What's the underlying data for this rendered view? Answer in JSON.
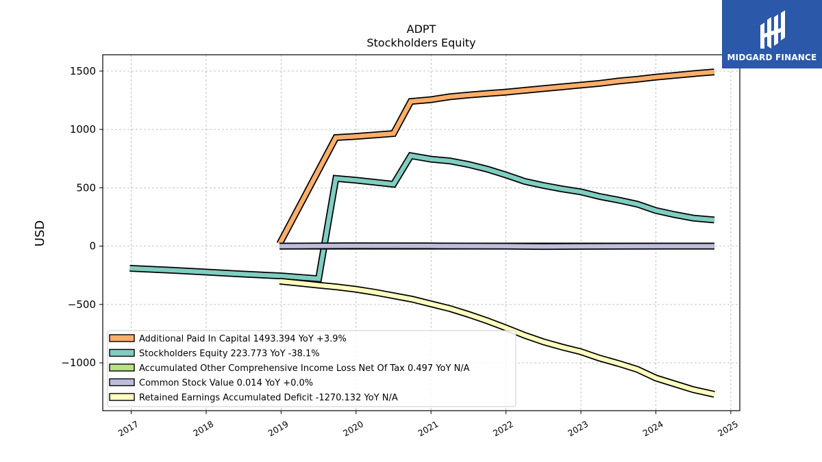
{
  "chart_data": {
    "type": "line",
    "title": "ADPT",
    "subtitle": "Stockholders  Equity",
    "xlabel": "",
    "ylabel": "USD",
    "xlim": [
      2016.62,
      2025.12
    ],
    "ylim": [
      -1410,
      1640
    ],
    "x_ticks": [
      "2017",
      "2018",
      "2019",
      "2020",
      "2021",
      "2022",
      "2023",
      "2024",
      "2025"
    ],
    "y_ticks": [
      1500,
      1000,
      500,
      0,
      -500,
      -1000
    ],
    "y_tick_labels": [
      "1500",
      "1000",
      "500",
      "0",
      "−500",
      "−1000"
    ],
    "grid": true,
    "legend_position": "lower-left",
    "series": [
      {
        "name": "Additional Paid In Capital",
        "legend": "Additional Paid In Capital  1493.394 YoY +3.9%",
        "color": "#fdae6b",
        "points": [
          [
            2018.98,
            20
          ],
          [
            2019.73,
            930
          ],
          [
            2020.0,
            940
          ],
          [
            2020.5,
            965
          ],
          [
            2020.73,
            1240
          ],
          [
            2021.0,
            1255
          ],
          [
            2021.25,
            1280
          ],
          [
            2021.5,
            1295
          ],
          [
            2021.75,
            1308
          ],
          [
            2022.0,
            1320
          ],
          [
            2022.25,
            1335
          ],
          [
            2022.5,
            1350
          ],
          [
            2022.75,
            1365
          ],
          [
            2023.0,
            1380
          ],
          [
            2023.25,
            1395
          ],
          [
            2023.5,
            1415
          ],
          [
            2023.75,
            1430
          ],
          [
            2024.0,
            1448
          ],
          [
            2024.25,
            1463
          ],
          [
            2024.5,
            1478
          ],
          [
            2024.78,
            1493
          ]
        ]
      },
      {
        "name": "Stockholders Equity",
        "legend": "Stockholders Equity  223.773 YoY -38.1%",
        "color": "#80cdc1",
        "points": [
          [
            2016.98,
            -190
          ],
          [
            2017.5,
            -205
          ],
          [
            2018.0,
            -222
          ],
          [
            2018.5,
            -240
          ],
          [
            2019.0,
            -255
          ],
          [
            2019.5,
            -280
          ],
          [
            2019.73,
            580
          ],
          [
            2020.0,
            565
          ],
          [
            2020.5,
            530
          ],
          [
            2020.73,
            775
          ],
          [
            2021.0,
            745
          ],
          [
            2021.25,
            730
          ],
          [
            2021.5,
            700
          ],
          [
            2021.75,
            660
          ],
          [
            2022.0,
            610
          ],
          [
            2022.25,
            555
          ],
          [
            2022.5,
            520
          ],
          [
            2022.75,
            490
          ],
          [
            2023.0,
            465
          ],
          [
            2023.25,
            425
          ],
          [
            2023.5,
            395
          ],
          [
            2023.75,
            360
          ],
          [
            2024.0,
            305
          ],
          [
            2024.25,
            270
          ],
          [
            2024.5,
            240
          ],
          [
            2024.78,
            224
          ]
        ]
      },
      {
        "name": "Accumulated Other Comprehensive Income Loss Net Of Tax",
        "legend": "Accumulated Other Comprehensive Income Loss Net Of Tax  0.497 YoY N/A",
        "color": "#b8e186",
        "points": [
          [
            2018.98,
            0.2
          ],
          [
            2024.78,
            0.5
          ]
        ]
      },
      {
        "name": "Common Stock Value",
        "legend": "Common Stock Value  0.014 YoY +0.0%",
        "color": "#bcbddc",
        "points": [
          [
            2018.98,
            0
          ],
          [
            2020.0,
            3
          ],
          [
            2021.0,
            2
          ],
          [
            2022.0,
            0
          ],
          [
            2022.5,
            -3
          ],
          [
            2023.0,
            -2
          ],
          [
            2024.0,
            0
          ],
          [
            2024.78,
            0
          ]
        ]
      },
      {
        "name": "Retained Earnings Accumulated Deficit",
        "legend": "Retained Earnings Accumulated Deficit  -1270.132 YoY N/A",
        "color": "#ffffbf",
        "points": [
          [
            2018.98,
            -300
          ],
          [
            2019.25,
            -318
          ],
          [
            2019.5,
            -335
          ],
          [
            2019.75,
            -350
          ],
          [
            2020.0,
            -370
          ],
          [
            2020.25,
            -395
          ],
          [
            2020.5,
            -425
          ],
          [
            2020.75,
            -455
          ],
          [
            2021.0,
            -495
          ],
          [
            2021.25,
            -535
          ],
          [
            2021.5,
            -585
          ],
          [
            2021.75,
            -640
          ],
          [
            2022.0,
            -700
          ],
          [
            2022.25,
            -765
          ],
          [
            2022.5,
            -820
          ],
          [
            2022.75,
            -865
          ],
          [
            2023.0,
            -905
          ],
          [
            2023.25,
            -960
          ],
          [
            2023.5,
            -1005
          ],
          [
            2023.75,
            -1055
          ],
          [
            2024.0,
            -1130
          ],
          [
            2024.25,
            -1180
          ],
          [
            2024.5,
            -1230
          ],
          [
            2024.78,
            -1270
          ]
        ]
      }
    ]
  },
  "logo": {
    "text": "MIDGARD FINANCE",
    "background": "#2b58a8"
  }
}
